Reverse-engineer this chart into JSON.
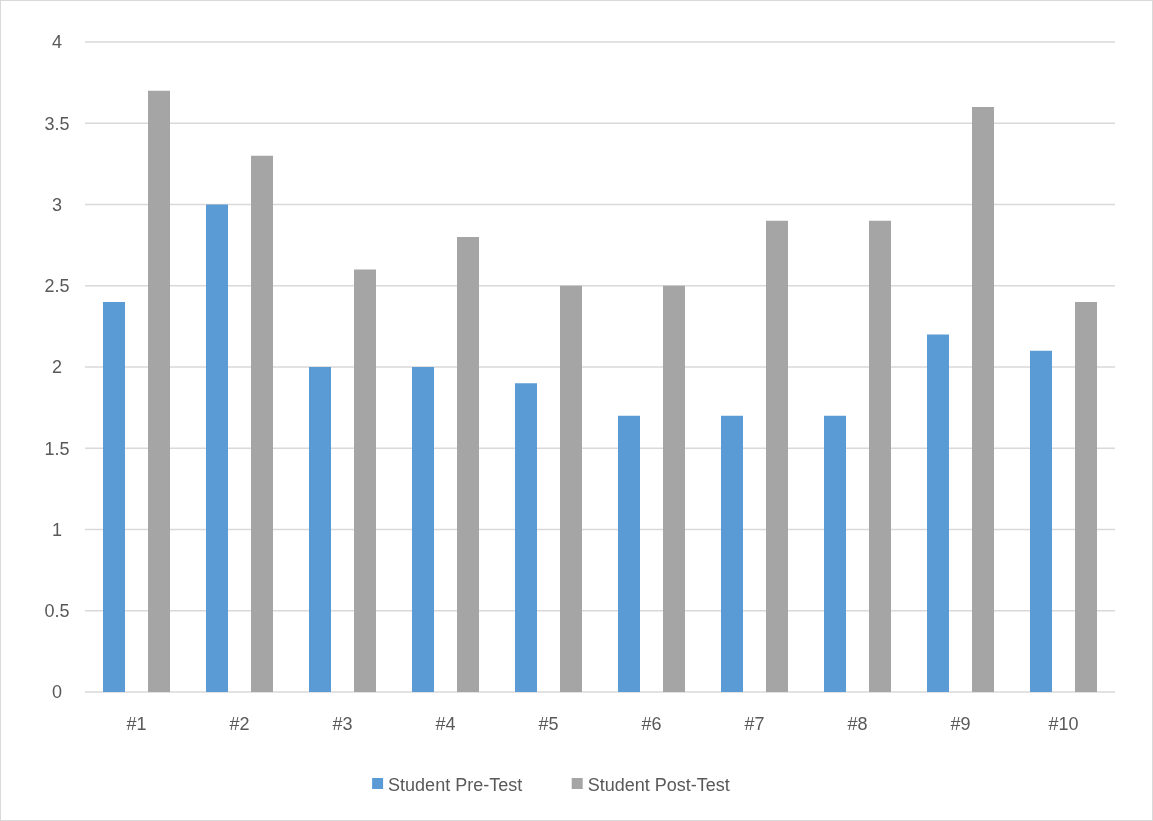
{
  "chart_data": {
    "type": "bar",
    "categories": [
      "#1",
      "#2",
      "#3",
      "#4",
      "#5",
      "#6",
      "#7",
      "#8",
      "#9",
      "#10"
    ],
    "series": [
      {
        "name": "Student Pre-Test",
        "color": "#5b9bd5",
        "values": [
          2.4,
          3.0,
          2.0,
          2.0,
          1.9,
          1.7,
          1.7,
          1.7,
          2.2,
          2.1
        ]
      },
      {
        "name": "Student Post-Test",
        "color": "#a5a5a5",
        "values": [
          3.7,
          3.3,
          2.6,
          2.8,
          2.5,
          2.5,
          2.9,
          2.9,
          3.6,
          2.4
        ]
      }
    ],
    "ylim": [
      0,
      4
    ],
    "yticks": [
      0,
      0.5,
      1,
      1.5,
      2,
      2.5,
      3,
      3.5,
      4
    ],
    "grid": "y",
    "legend": "bottom"
  }
}
